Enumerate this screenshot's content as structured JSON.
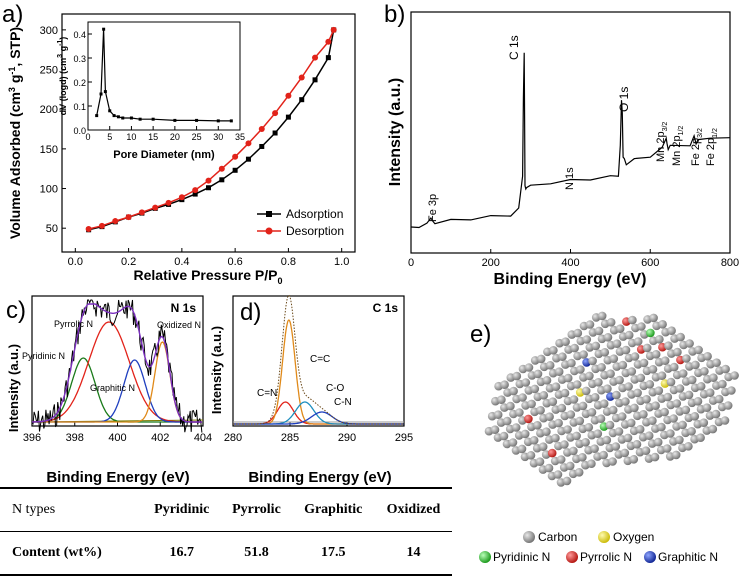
{
  "chart_data": [
    {
      "id": "a",
      "type": "line",
      "panel_label": "a)",
      "xlabel": "Relative Pressure P/P",
      "xlabel_sub": "0",
      "ylabel": "Volume Adsorbed (cm",
      "xlim": [
        -0.05,
        1.05
      ],
      "ylim": [
        20,
        320
      ],
      "xticks": [
        "0.0",
        "0.2",
        "0.4",
        "0.6",
        "0.8",
        "1.0"
      ],
      "xtick_values": [
        0,
        0.2,
        0.4,
        0.6,
        0.8,
        1.0
      ],
      "yticks": [
        "50",
        "100",
        "150",
        "200",
        "250",
        "300"
      ],
      "ytick_values": [
        50,
        100,
        150,
        200,
        250,
        300
      ],
      "legend_position": "bottom-right",
      "series": [
        {
          "name": "Adsorption",
          "color": "#000000",
          "marker": "square",
          "x": [
            0.05,
            0.1,
            0.15,
            0.2,
            0.25,
            0.3,
            0.35,
            0.4,
            0.45,
            0.5,
            0.55,
            0.6,
            0.65,
            0.7,
            0.75,
            0.8,
            0.85,
            0.9,
            0.95,
            0.97
          ],
          "y": [
            48,
            52,
            58,
            64,
            69,
            75,
            80,
            86,
            93,
            101,
            111,
            123,
            137,
            153,
            170,
            190,
            212,
            237,
            265,
            300
          ]
        },
        {
          "name": "Desorption",
          "color": "#e2231a",
          "marker": "circle",
          "x": [
            0.05,
            0.1,
            0.15,
            0.2,
            0.25,
            0.3,
            0.35,
            0.4,
            0.45,
            0.5,
            0.55,
            0.6,
            0.65,
            0.7,
            0.75,
            0.8,
            0.85,
            0.9,
            0.95,
            0.97
          ],
          "y": [
            49,
            53,
            59,
            64,
            70,
            76,
            82,
            89,
            98,
            110,
            125,
            140,
            157,
            175,
            195,
            217,
            240,
            265,
            285,
            300
          ]
        }
      ],
      "inset": {
        "type": "line",
        "xlabel": "Pore Diameter (nm)",
        "ylabel": "dV (logd) (cm",
        "xlim": [
          0,
          35
        ],
        "ylim": [
          0,
          0.45
        ],
        "xticks": [
          "0",
          "5",
          "10",
          "15",
          "20",
          "25",
          "30",
          "35"
        ],
        "xtick_values": [
          0,
          5,
          10,
          15,
          20,
          25,
          30,
          35
        ],
        "yticks": [
          "0.0",
          "0.1",
          "0.2",
          "0.3",
          "0.4"
        ],
        "ytick_values": [
          0,
          0.1,
          0.2,
          0.3,
          0.4
        ],
        "x": [
          2,
          3,
          3.6,
          4,
          5,
          6,
          7,
          8,
          10,
          12,
          15,
          20,
          25,
          30,
          33
        ],
        "y": [
          0.06,
          0.15,
          0.42,
          0.16,
          0.08,
          0.06,
          0.055,
          0.05,
          0.05,
          0.045,
          0.045,
          0.04,
          0.04,
          0.038,
          0.038
        ]
      }
    },
    {
      "id": "b",
      "type": "line",
      "panel_label": "b)",
      "xlabel": "Binding Energy (eV)",
      "ylabel": "Intensity (a.u.)",
      "xlim": [
        0,
        800
      ],
      "xticks": [
        "0",
        "200",
        "400",
        "600",
        "800"
      ],
      "xtick_values": [
        0,
        200,
        400,
        600,
        800
      ],
      "x": [
        0,
        20,
        40,
        50,
        55,
        60,
        100,
        150,
        200,
        250,
        270,
        280,
        282,
        284,
        285,
        286,
        288,
        290,
        300,
        350,
        400,
        450,
        500,
        520,
        525,
        528,
        530,
        532,
        535,
        540,
        560,
        600,
        630,
        640,
        642,
        645,
        650,
        700,
        710,
        715,
        720,
        750,
        800
      ],
      "y": [
        0.02,
        0.03,
        0.04,
        0.08,
        0.05,
        0.05,
        0.06,
        0.07,
        0.08,
        0.09,
        0.12,
        0.3,
        0.7,
        0.95,
        0.6,
        0.25,
        0.22,
        0.24,
        0.24,
        0.26,
        0.27,
        0.28,
        0.29,
        0.3,
        0.45,
        0.7,
        0.62,
        0.4,
        0.38,
        0.36,
        0.38,
        0.4,
        0.44,
        0.5,
        0.46,
        0.44,
        0.45,
        0.46,
        0.5,
        0.47,
        0.48,
        0.5,
        0.49
      ],
      "annotations": [
        {
          "text": "Fe 3p"
        },
        {
          "text": "C 1s"
        },
        {
          "text": "N 1s"
        },
        {
          "text": "O 1s"
        },
        {
          "text": "Mn 2p",
          "sub": "3/2"
        },
        {
          "text": "Mn 2p",
          "sub": "1/2"
        },
        {
          "text": "Fe 2p",
          "sub": "3/2"
        },
        {
          "text": "Fe 2p",
          "sub": "1/2"
        }
      ]
    },
    {
      "id": "c",
      "type": "line",
      "panel_label": "c)",
      "title": "N 1s",
      "xlabel": "Binding Energy (eV)",
      "ylabel": "Intensity (a.u.)",
      "xlim": [
        396,
        404
      ],
      "xticks": [
        "396",
        "398",
        "400",
        "402",
        "404"
      ],
      "xtick_values": [
        396,
        398,
        400,
        402,
        404
      ],
      "components": [
        {
          "name": "Pyridinic N",
          "center": 398.4,
          "color": "#1a7a1a"
        },
        {
          "name": "Pyrrolic N",
          "center": 399.6,
          "color": "#e2231a"
        },
        {
          "name": "Graphitic N",
          "center": 400.8,
          "color": "#1f3fbf"
        },
        {
          "name": "Oxidized N",
          "center": 402.1,
          "color": "#e08a1a"
        }
      ]
    },
    {
      "id": "d",
      "type": "line",
      "panel_label": "d)",
      "title": "C 1s",
      "xlabel": "Binding Energy (eV)",
      "ylabel": "Intensity (a.u.)",
      "xlim": [
        280,
        295
      ],
      "xticks": [
        "280",
        "285",
        "290",
        "295"
      ],
      "xtick_values": [
        280,
        285,
        290,
        295
      ],
      "components": [
        {
          "name": "C=N",
          "center": 284.6,
          "color": "#e2231a"
        },
        {
          "name": "C=C",
          "center": 284.9,
          "color": "#e08a1a"
        },
        {
          "name": "C-O",
          "center": 286.3,
          "color": "#1f8fbf"
        },
        {
          "name": "C-N",
          "center": 287.8,
          "color": "#1f3fbf"
        }
      ]
    }
  ],
  "table": {
    "headers": [
      "N types",
      "Pyridinic",
      "Pyrrolic",
      "Graphitic",
      "Oxidized"
    ],
    "row_label": "Content (wt%)",
    "values": [
      "16.7",
      "51.8",
      "17.5",
      "14"
    ]
  },
  "panel_e": {
    "label": "e)",
    "legend": [
      {
        "text": "Carbon",
        "color": "#9a9a9a"
      },
      {
        "text": "Oxygen",
        "color": "#f2e21a"
      },
      {
        "text": "Pyridinic N",
        "color": "#2dbf2d"
      },
      {
        "text": "Pyrrolic N",
        "color": "#e2231a"
      },
      {
        "text": "Graphitic N",
        "color": "#1f3fbf"
      }
    ]
  }
}
